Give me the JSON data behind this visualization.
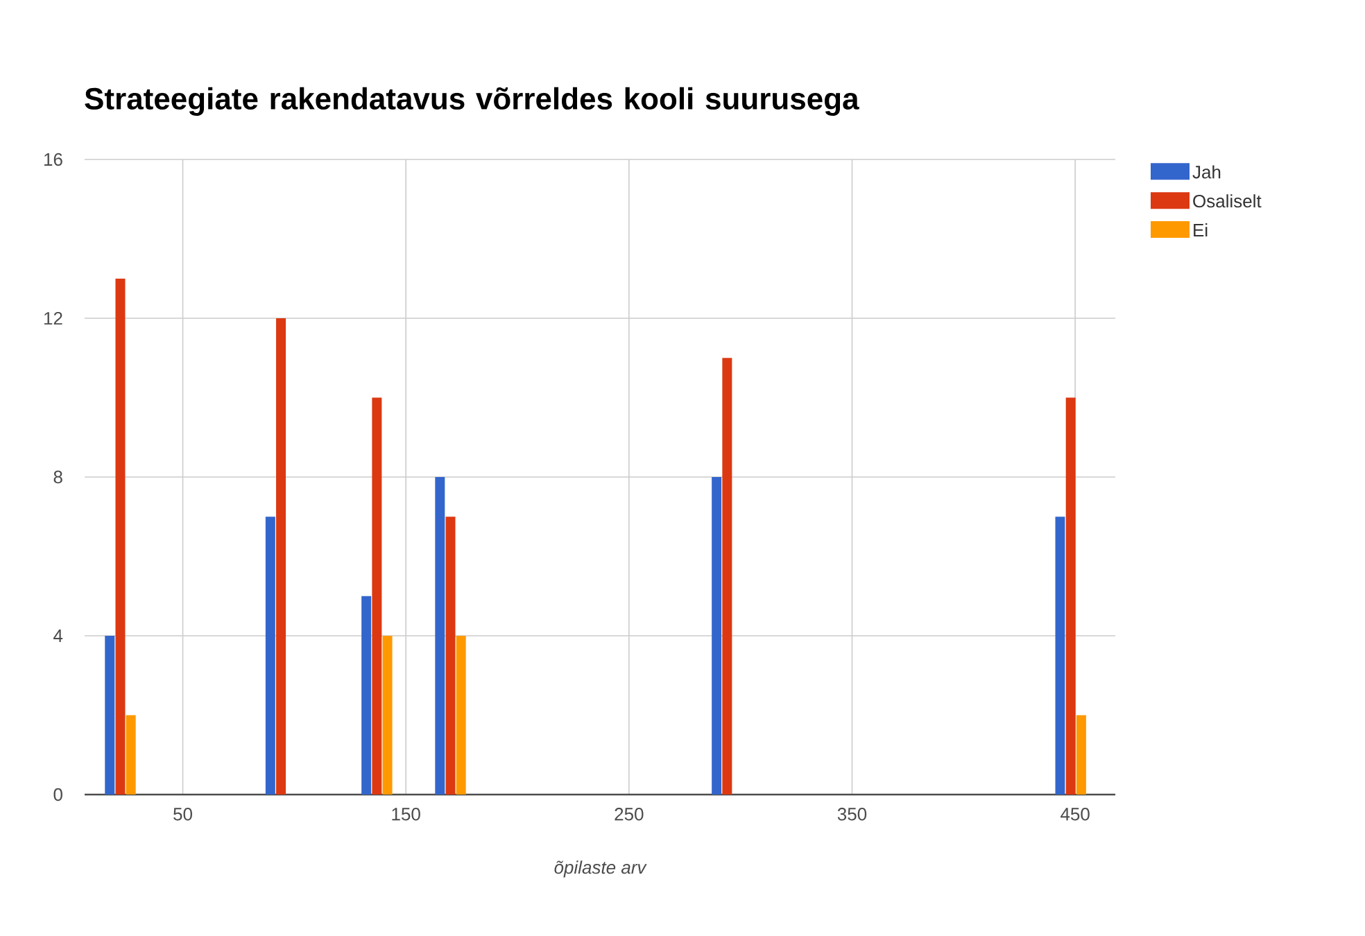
{
  "chart_data": {
    "type": "bar",
    "title": "Strateegiate rakendatavus võrreldes kooli suurusega",
    "xlabel": "õpilaste arv",
    "x": [
      22,
      94,
      137,
      170,
      294,
      448
    ],
    "series": [
      {
        "name": "Jah",
        "color": "#3366cc",
        "values": [
          4,
          7,
          5,
          8,
          8,
          7
        ]
      },
      {
        "name": "Osaliselt",
        "color": "#dc3912",
        "values": [
          13,
          12,
          10,
          7,
          11,
          10
        ]
      },
      {
        "name": "Ei",
        "color": "#ff9900",
        "values": [
          2,
          null,
          4,
          4,
          null,
          2
        ]
      }
    ],
    "xlim": [
      6,
      468
    ],
    "ylim": [
      0,
      16
    ],
    "xticks": [
      50,
      150,
      250,
      350,
      450
    ],
    "yticks": [
      0,
      4,
      8,
      12,
      16
    ],
    "grid": true,
    "legend": "right"
  }
}
